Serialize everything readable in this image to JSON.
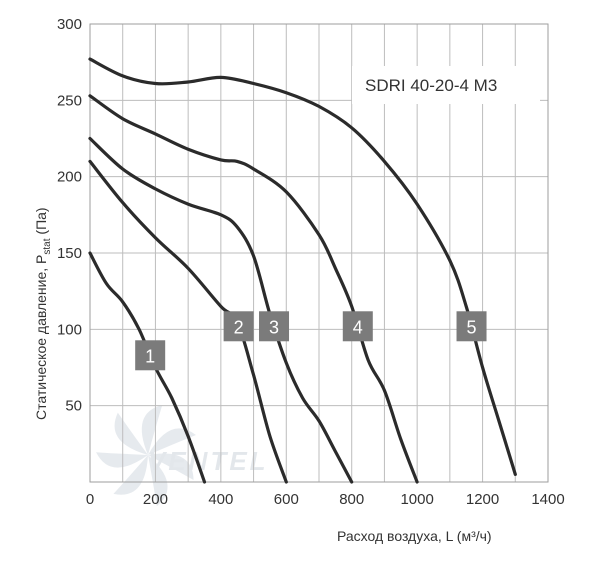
{
  "chart_data": {
    "type": "line",
    "title": "SDRI 40-20-4 M3",
    "xlabel": "Расход воздуха, L (м³/ч)",
    "ylabel": "Статическое давление, P",
    "ylabel_sub": "stat",
    "ylabel_unit": " (Па)",
    "xlim": [
      0,
      1400
    ],
    "ylim": [
      0,
      300
    ],
    "x_ticks": [
      0,
      200,
      400,
      600,
      800,
      1000,
      1200,
      1400
    ],
    "y_ticks": [
      50,
      100,
      150,
      200,
      250,
      300
    ],
    "grid": true,
    "series": [
      {
        "name": "1",
        "points": [
          [
            0,
            150
          ],
          [
            50,
            130
          ],
          [
            100,
            118
          ],
          [
            150,
            100
          ],
          [
            200,
            75
          ],
          [
            250,
            55
          ],
          [
            300,
            30
          ],
          [
            350,
            0
          ]
        ]
      },
      {
        "name": "2",
        "points": [
          [
            0,
            210
          ],
          [
            100,
            183
          ],
          [
            200,
            160
          ],
          [
            300,
            140
          ],
          [
            400,
            115
          ],
          [
            450,
            105
          ],
          [
            500,
            70
          ],
          [
            550,
            30
          ],
          [
            600,
            0
          ]
        ]
      },
      {
        "name": "3",
        "points": [
          [
            0,
            225
          ],
          [
            100,
            205
          ],
          [
            200,
            192
          ],
          [
            300,
            182
          ],
          [
            400,
            175
          ],
          [
            450,
            167
          ],
          [
            500,
            148
          ],
          [
            550,
            110
          ],
          [
            600,
            78
          ],
          [
            650,
            55
          ],
          [
            700,
            40
          ],
          [
            750,
            20
          ],
          [
            800,
            0
          ]
        ]
      },
      {
        "name": "4",
        "points": [
          [
            0,
            253
          ],
          [
            100,
            238
          ],
          [
            200,
            228
          ],
          [
            300,
            218
          ],
          [
            400,
            211
          ],
          [
            450,
            210
          ],
          [
            500,
            205
          ],
          [
            600,
            190
          ],
          [
            700,
            162
          ],
          [
            750,
            140
          ],
          [
            800,
            115
          ],
          [
            850,
            80
          ],
          [
            900,
            60
          ],
          [
            950,
            28
          ],
          [
            1000,
            0
          ]
        ]
      },
      {
        "name": "5",
        "points": [
          [
            0,
            277
          ],
          [
            100,
            266
          ],
          [
            200,
            261
          ],
          [
            300,
            262
          ],
          [
            400,
            265
          ],
          [
            500,
            261
          ],
          [
            600,
            255
          ],
          [
            700,
            246
          ],
          [
            800,
            232
          ],
          [
            900,
            210
          ],
          [
            1000,
            182
          ],
          [
            1100,
            145
          ],
          [
            1150,
            115
          ],
          [
            1200,
            75
          ],
          [
            1250,
            40
          ],
          [
            1300,
            5
          ]
        ]
      }
    ]
  },
  "logo": {
    "text": "VENTEL"
  }
}
